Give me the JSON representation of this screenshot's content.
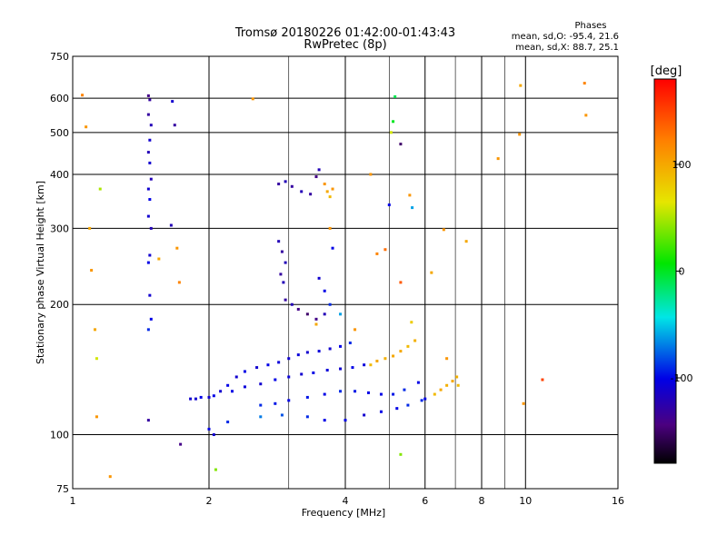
{
  "chart_data": {
    "type": "scatter",
    "title": "Tromsø 20180226 01:42:00-01:43:43",
    "subtitle": "RwPretec (8p)",
    "xlabel": "Frequency [MHz]",
    "ylabel": "Stationary phase Virtual Height [km]",
    "x_scale": "log",
    "y_scale": "log",
    "xlim": [
      1,
      16
    ],
    "ylim": [
      75,
      750
    ],
    "x_ticks": [
      1,
      2,
      4,
      6,
      8,
      10,
      16
    ],
    "x_grid": [
      2,
      4,
      6,
      8,
      10
    ],
    "x_minor_grid": [
      3,
      5,
      7,
      9
    ],
    "y_ticks": [
      75,
      100,
      200,
      300,
      400,
      500,
      600,
      750
    ],
    "y_grid": [
      100,
      200,
      300,
      400,
      500,
      600
    ],
    "grid": true,
    "stats": {
      "heading": "Phases",
      "line1": "mean, sd,O: -95.4, 21.6",
      "line2": "mean, sd,X:  88.7, 25.1"
    },
    "colorbar": {
      "label": "[deg]",
      "range": [
        -180,
        180
      ],
      "ticks": [
        100,
        0,
        -100
      ]
    },
    "series": [
      {
        "points": [
          [
            1.47,
            608,
            -140
          ],
          [
            1.48,
            595,
            -130
          ],
          [
            1.47,
            550,
            -130
          ],
          [
            1.49,
            520,
            -120
          ],
          [
            1.48,
            480,
            -110
          ],
          [
            1.47,
            450,
            -120
          ],
          [
            1.48,
            425,
            -110
          ],
          [
            1.49,
            390,
            -120
          ],
          [
            1.47,
            370,
            -110
          ],
          [
            1.48,
            350,
            -100
          ],
          [
            1.47,
            320,
            -110
          ],
          [
            1.49,
            300,
            -120
          ],
          [
            1.48,
            260,
            -110
          ],
          [
            1.47,
            250,
            -100
          ],
          [
            1.48,
            210,
            -110
          ],
          [
            1.49,
            185,
            -100
          ],
          [
            1.47,
            175,
            -90
          ],
          [
            1.65,
            305,
            -120
          ],
          [
            1.68,
            520,
            -130
          ],
          [
            1.66,
            590,
            -110
          ],
          [
            1.73,
            95,
            -140
          ],
          [
            1.47,
            108,
            -130
          ]
        ]
      },
      {
        "points": [
          [
            1.82,
            121,
            -110
          ],
          [
            1.87,
            121,
            -110
          ],
          [
            1.92,
            122,
            -100
          ],
          [
            2.0,
            122,
            -110
          ],
          [
            2.05,
            123,
            -100
          ],
          [
            2.12,
            126,
            -110
          ],
          [
            2.2,
            130,
            -100
          ],
          [
            2.3,
            136,
            -110
          ],
          [
            2.4,
            140,
            -100
          ],
          [
            2.55,
            143,
            -110
          ],
          [
            2.7,
            145,
            -100
          ],
          [
            2.85,
            147,
            -105
          ],
          [
            3.0,
            150,
            -110
          ],
          [
            3.15,
            153,
            -105
          ],
          [
            3.3,
            155,
            -110
          ],
          [
            3.5,
            156,
            -105
          ],
          [
            3.7,
            158,
            -110
          ],
          [
            3.9,
            160,
            -100
          ],
          [
            4.1,
            163,
            -90
          ]
        ]
      },
      {
        "points": [
          [
            2.25,
            126,
            -100
          ],
          [
            2.4,
            129,
            -105
          ],
          [
            2.6,
            131,
            -110
          ],
          [
            2.8,
            134,
            -100
          ],
          [
            3.0,
            136,
            -105
          ],
          [
            3.2,
            138,
            -110
          ],
          [
            3.4,
            139,
            -100
          ],
          [
            3.65,
            141,
            -105
          ],
          [
            3.9,
            142,
            -110
          ],
          [
            4.15,
            143,
            -100
          ],
          [
            4.4,
            145,
            -105
          ]
        ]
      },
      {
        "points": [
          [
            2.6,
            117,
            -90
          ],
          [
            2.8,
            118,
            -95
          ],
          [
            3.0,
            120,
            -100
          ],
          [
            3.3,
            122,
            -95
          ],
          [
            3.6,
            124,
            -100
          ],
          [
            3.9,
            126,
            -90
          ],
          [
            4.2,
            126,
            -95
          ],
          [
            4.5,
            125,
            -100
          ],
          [
            4.8,
            124,
            -100
          ],
          [
            5.1,
            124,
            -95
          ],
          [
            5.4,
            127,
            -90
          ],
          [
            5.8,
            132,
            -100
          ]
        ]
      },
      {
        "points": [
          [
            2.6,
            110,
            -70
          ],
          [
            2.9,
            111,
            -80
          ],
          [
            3.3,
            110,
            -90
          ],
          [
            3.6,
            108,
            -100
          ],
          [
            4.0,
            108,
            -100
          ],
          [
            4.4,
            111,
            -110
          ],
          [
            4.8,
            113,
            -100
          ],
          [
            5.2,
            115,
            -100
          ],
          [
            5.5,
            117,
            -90
          ],
          [
            5.9,
            120,
            -90
          ],
          [
            6.0,
            121,
            -100
          ],
          [
            2.0,
            103,
            -100
          ],
          [
            2.05,
            100,
            -110
          ],
          [
            2.2,
            107,
            -90
          ]
        ]
      },
      {
        "points": [
          [
            4.55,
            145,
            90
          ],
          [
            4.7,
            148,
            100
          ],
          [
            4.9,
            150,
            95
          ],
          [
            5.1,
            152,
            100
          ],
          [
            5.3,
            156,
            100
          ],
          [
            5.5,
            160,
            90
          ],
          [
            5.7,
            165,
            95
          ],
          [
            5.6,
            182,
            80
          ],
          [
            6.3,
            124,
            90
          ],
          [
            6.5,
            127,
            100
          ],
          [
            6.7,
            130,
            95
          ],
          [
            6.9,
            133,
            100
          ],
          [
            7.05,
            136,
            95
          ],
          [
            7.1,
            130,
            90
          ]
        ]
      },
      {
        "points": [
          [
            2.85,
            380,
            -130
          ],
          [
            2.95,
            385,
            -120
          ],
          [
            3.05,
            375,
            -130
          ],
          [
            3.2,
            365,
            -120
          ],
          [
            3.35,
            360,
            -130
          ],
          [
            3.45,
            395,
            -140
          ],
          [
            3.5,
            410,
            -120
          ],
          [
            3.6,
            380,
            110
          ],
          [
            3.65,
            365,
            100
          ],
          [
            3.7,
            355,
            90
          ],
          [
            3.75,
            370,
            110
          ]
        ]
      },
      {
        "points": [
          [
            2.85,
            280,
            -120
          ],
          [
            2.9,
            265,
            -130
          ],
          [
            2.95,
            250,
            -120
          ],
          [
            2.88,
            235,
            -130
          ],
          [
            2.92,
            225,
            -120
          ],
          [
            2.95,
            205,
            -130
          ],
          [
            3.05,
            200,
            -120
          ],
          [
            3.15,
            195,
            -140
          ],
          [
            3.3,
            190,
            -150
          ],
          [
            3.45,
            185,
            -140
          ],
          [
            3.6,
            190,
            -120
          ],
          [
            3.5,
            230,
            -110
          ],
          [
            3.6,
            215,
            -100
          ],
          [
            3.7,
            200,
            -90
          ],
          [
            3.75,
            270,
            -100
          ],
          [
            3.7,
            300,
            110
          ]
        ]
      },
      {
        "points": [
          [
            1.05,
            610,
            120
          ],
          [
            1.07,
            515,
            110
          ],
          [
            1.09,
            300,
            100
          ],
          [
            1.1,
            240,
            110
          ],
          [
            1.12,
            175,
            100
          ],
          [
            1.13,
            110,
            110
          ],
          [
            1.13,
            150,
            60
          ],
          [
            1.21,
            80,
            110
          ],
          [
            1.15,
            370,
            50
          ],
          [
            1.55,
            255,
            100
          ],
          [
            1.7,
            270,
            110
          ],
          [
            1.72,
            225,
            120
          ],
          [
            2.5,
            598,
            110
          ],
          [
            2.07,
            83,
            40
          ],
          [
            4.55,
            400,
            110
          ],
          [
            5.0,
            340,
            -100
          ],
          [
            5.05,
            500,
            60
          ],
          [
            5.15,
            605,
            -10
          ],
          [
            5.1,
            530,
            0
          ],
          [
            5.3,
            470,
            -150
          ],
          [
            5.55,
            358,
            110
          ],
          [
            5.3,
            90,
            40
          ],
          [
            5.62,
            335,
            -60
          ],
          [
            6.2,
            237,
            100
          ],
          [
            6.6,
            298,
            110
          ],
          [
            7.4,
            280,
            100
          ],
          [
            8.7,
            435,
            110
          ],
          [
            9.7,
            495,
            110
          ],
          [
            9.75,
            642,
            100
          ],
          [
            9.9,
            118,
            110
          ],
          [
            10.9,
            134,
            150
          ],
          [
            13.5,
            650,
            120
          ],
          [
            13.6,
            548,
            110
          ],
          [
            4.7,
            262,
            120
          ],
          [
            4.9,
            268,
            130
          ],
          [
            5.3,
            225,
            140
          ],
          [
            3.45,
            180,
            100
          ],
          [
            3.9,
            190,
            -60
          ],
          [
            4.2,
            175,
            110
          ],
          [
            6.7,
            150,
            110
          ]
        ]
      }
    ]
  }
}
